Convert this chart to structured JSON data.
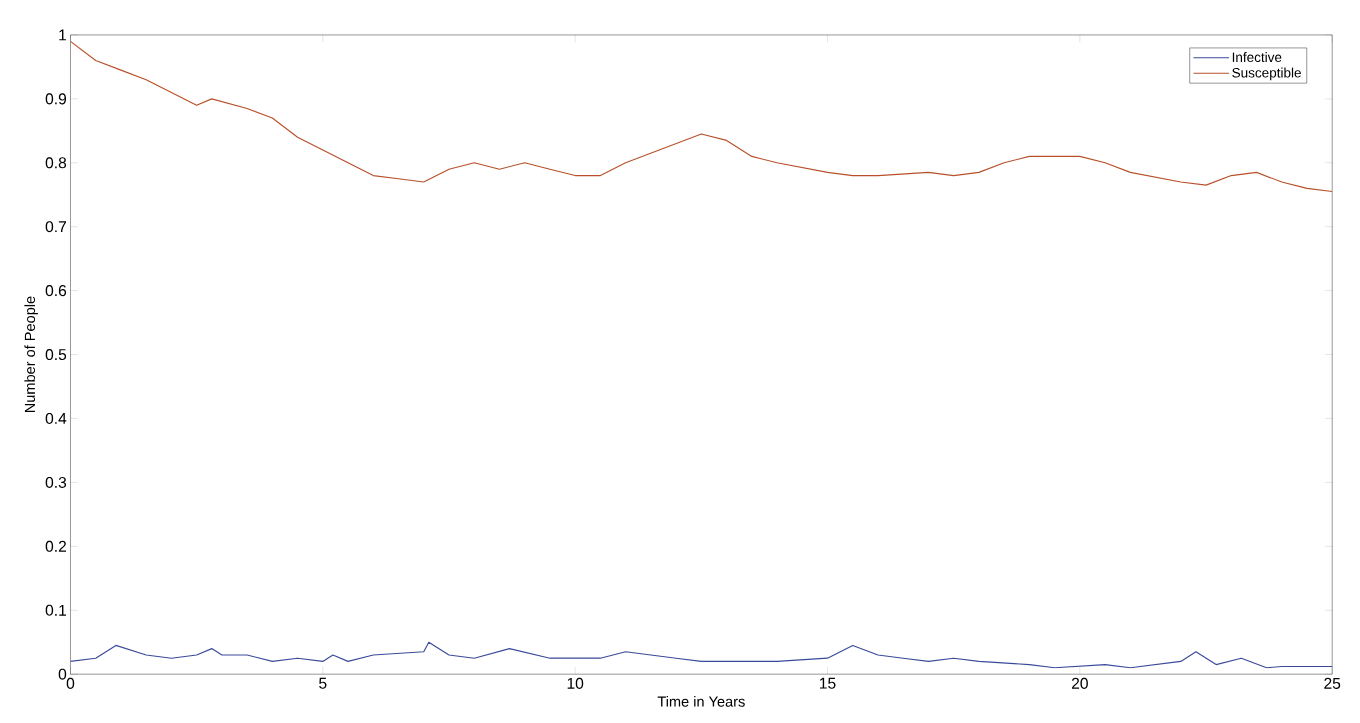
{
  "chart_data": {
    "type": "line",
    "xlabel": "Time in Years",
    "ylabel": "Number of People",
    "xlim": [
      0,
      25
    ],
    "ylim": [
      0,
      1
    ],
    "xticks": [
      0,
      5,
      10,
      15,
      20,
      25
    ],
    "yticks": [
      0,
      0.1,
      0.2,
      0.3,
      0.4,
      0.5,
      0.6,
      0.7,
      0.8,
      0.9,
      1
    ],
    "grid": false,
    "legend": "top right",
    "marker": "none",
    "line_style": "solid",
    "series": [
      {
        "name": "Infective",
        "color": "#3a4a9a",
        "x": [
          0,
          0.5,
          0.9,
          1.5,
          2,
          2.5,
          2.8,
          3,
          3.5,
          4,
          4.5,
          5,
          5.2,
          5.5,
          6,
          7,
          7.1,
          7.5,
          8,
          8.7,
          9.5,
          10,
          10.5,
          11,
          11.5,
          12,
          12.5,
          13,
          14,
          15,
          15.5,
          16,
          16.5,
          17,
          17.5,
          18,
          19,
          19.5,
          20.5,
          21,
          22,
          22.3,
          22.7,
          23.2,
          23.7,
          24,
          25
        ],
        "values": [
          0.02,
          0.025,
          0.045,
          0.03,
          0.025,
          0.03,
          0.04,
          0.03,
          0.03,
          0.02,
          0.025,
          0.02,
          0.03,
          0.02,
          0.03,
          0.035,
          0.05,
          0.03,
          0.025,
          0.04,
          0.025,
          0.025,
          0.025,
          0.035,
          0.03,
          0.025,
          0.02,
          0.02,
          0.02,
          0.025,
          0.045,
          0.03,
          0.025,
          0.02,
          0.025,
          0.02,
          0.015,
          0.01,
          0.015,
          0.01,
          0.02,
          0.035,
          0.015,
          0.025,
          0.01,
          0.012,
          0.012
        ]
      },
      {
        "name": "Susceptible",
        "color": "#b8502a",
        "x": [
          0,
          0.5,
          1,
          1.5,
          2,
          2.5,
          2.8,
          3.5,
          4,
          4.5,
          5,
          5.5,
          6,
          6.5,
          7,
          7.5,
          8,
          8.5,
          9,
          9.5,
          10,
          10.5,
          11,
          12,
          12.5,
          13,
          13.5,
          14,
          15,
          15.5,
          16,
          17,
          17.5,
          18,
          18.5,
          19,
          20,
          20.5,
          21,
          22,
          22.5,
          23,
          23.5,
          24,
          24.5,
          25
        ],
        "values": [
          0.99,
          0.96,
          0.945,
          0.93,
          0.91,
          0.89,
          0.9,
          0.885,
          0.87,
          0.84,
          0.82,
          0.8,
          0.78,
          0.775,
          0.77,
          0.79,
          0.8,
          0.79,
          0.8,
          0.79,
          0.78,
          0.78,
          0.8,
          0.83,
          0.845,
          0.835,
          0.81,
          0.8,
          0.785,
          0.78,
          0.78,
          0.785,
          0.78,
          0.785,
          0.8,
          0.81,
          0.81,
          0.8,
          0.785,
          0.77,
          0.765,
          0.78,
          0.785,
          0.77,
          0.76,
          0.755
        ]
      }
    ]
  }
}
